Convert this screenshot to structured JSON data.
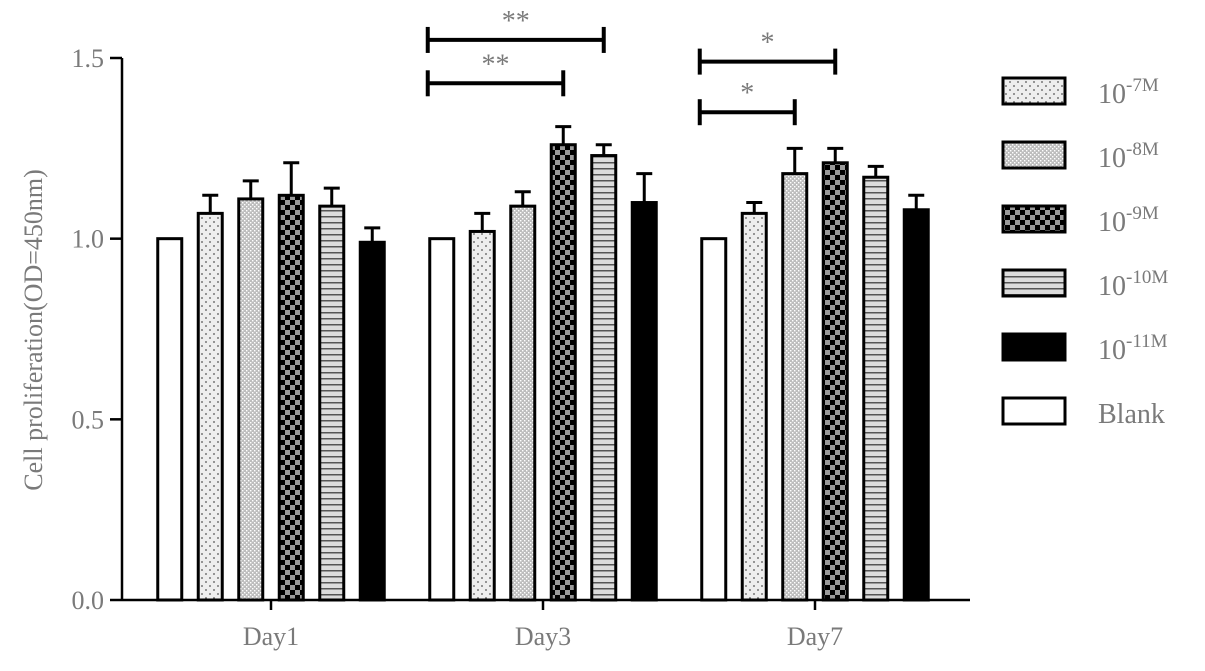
{
  "chart_data": {
    "type": "bar",
    "ylabel": "Cell proliferation(OD=450nm)",
    "xlabel": "",
    "ylim": [
      0,
      1.5
    ],
    "yticks": [
      "0.0",
      "0.5",
      "1.0",
      "1.5"
    ],
    "categories": [
      "Day1",
      "Day3",
      "Day7"
    ],
    "legend_position": "right",
    "series": [
      {
        "name": "Blank",
        "legend_base": "Blank",
        "legend_exp": "",
        "pattern": "blank",
        "values": [
          1.0,
          1.0,
          1.0
        ],
        "errors": [
          0,
          0,
          0
        ]
      },
      {
        "name": "10-7M",
        "legend_base": "10",
        "legend_exp": "-7M",
        "pattern": "dots",
        "values": [
          1.07,
          1.02,
          1.07
        ],
        "errors": [
          0.05,
          0.05,
          0.03
        ]
      },
      {
        "name": "10-8M",
        "legend_base": "10",
        "legend_exp": "-8M",
        "pattern": "dense",
        "values": [
          1.11,
          1.09,
          1.18
        ],
        "errors": [
          0.05,
          0.04,
          0.07
        ]
      },
      {
        "name": "10-9M",
        "legend_base": "10",
        "legend_exp": "-9M",
        "pattern": "checker",
        "values": [
          1.12,
          1.26,
          1.21
        ],
        "errors": [
          0.09,
          0.05,
          0.04
        ]
      },
      {
        "name": "10-10M",
        "legend_base": "10",
        "legend_exp": "-10M",
        "pattern": "hlines",
        "values": [
          1.09,
          1.23,
          1.17
        ],
        "errors": [
          0.05,
          0.03,
          0.03
        ]
      },
      {
        "name": "10-11M",
        "legend_base": "10",
        "legend_exp": "-11M",
        "pattern": "solid",
        "values": [
          0.99,
          1.1,
          1.08
        ],
        "errors": [
          0.04,
          0.08,
          0.04
        ]
      }
    ],
    "legend_order": [
      "10-7M",
      "10-8M",
      "10-9M",
      "10-10M",
      "10-11M",
      "Blank"
    ],
    "significance": [
      {
        "category": "Day3",
        "from_series": "Blank",
        "to_series": "10-10M",
        "y": 1.55,
        "label": "**"
      },
      {
        "category": "Day3",
        "from_series": "Blank",
        "to_series": "10-9M",
        "y": 1.43,
        "label": "**"
      },
      {
        "category": "Day7",
        "from_series": "Blank",
        "to_series": "10-9M",
        "y": 1.49,
        "label": "*"
      },
      {
        "category": "Day7",
        "from_series": "Blank",
        "to_series": "10-8M",
        "y": 1.35,
        "label": "*"
      }
    ]
  }
}
